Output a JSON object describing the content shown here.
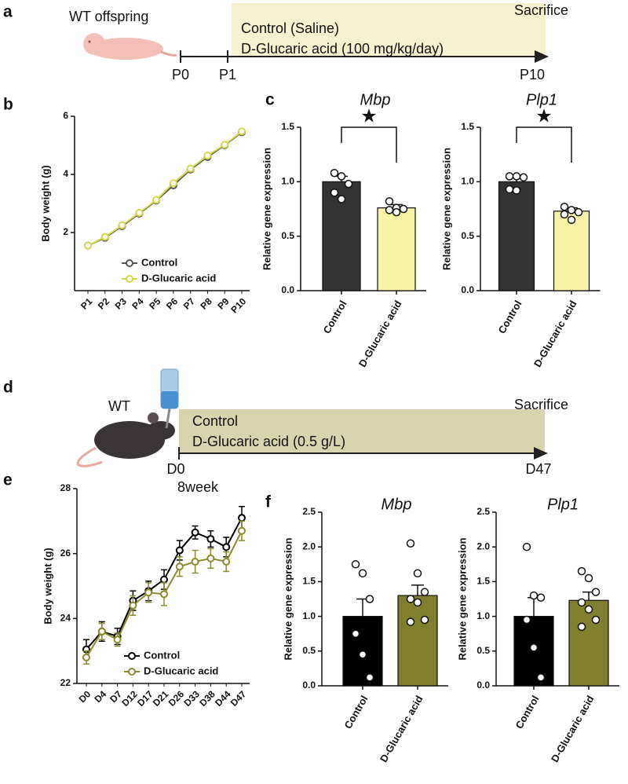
{
  "panel_labels": [
    "a",
    "b",
    "c",
    "d",
    "e",
    "f"
  ],
  "timelines": [
    {
      "label_left": "WT offspring",
      "treatments": [
        "Control (Saline)",
        "D-Glucaric acid (100 mg/kg/day)"
      ],
      "end_label": "Sacrifice",
      "timepoints": [
        "P0",
        "P1",
        "P10"
      ]
    },
    {
      "label_left": "WT",
      "treatments": [
        "Control",
        "D-Glucaric acid (0.5 g/L)"
      ],
      "end_label": "Sacrifice",
      "timepoints": [
        "D0",
        "D47"
      ],
      "note": "8week"
    }
  ],
  "chart_data": [
    {
      "type": "line",
      "ylabel": "Body weight (g)",
      "categories": [
        "P1",
        "P2",
        "P3",
        "P4",
        "P5",
        "P6",
        "P7",
        "P8",
        "P9",
        "P10"
      ],
      "ylim": [
        0,
        6
      ],
      "yticks": [
        2,
        4,
        6
      ],
      "legend": "lower right",
      "series": [
        {
          "name": "Control",
          "color": "#555555",
          "values": [
            1.55,
            1.82,
            2.22,
            2.65,
            3.1,
            3.62,
            4.17,
            4.6,
            5.0,
            5.45
          ]
        },
        {
          "name": "D-Glucaric acid",
          "color": "#d5d84c",
          "values": [
            1.55,
            1.85,
            2.25,
            2.68,
            3.12,
            3.7,
            4.2,
            4.65,
            5.02,
            5.48
          ]
        }
      ]
    },
    {
      "type": "bar",
      "title": "Mbp",
      "ylabel": "Relative gene expression",
      "categories": [
        "Control",
        "D-Glucaric acid"
      ],
      "values": [
        1.0,
        0.76
      ],
      "errors": [
        0.05,
        0.03
      ],
      "colors": [
        "#333333",
        "#fbf3a8"
      ],
      "points": [
        [
          1.08,
          1.05,
          0.98,
          0.9,
          0.84
        ],
        [
          0.82,
          0.76,
          0.75,
          0.74,
          0.72
        ]
      ],
      "significance": "★",
      "ylim": [
        0,
        1.5
      ],
      "yticks": [
        {
          "value": 0,
          "label": "0.0"
        },
        {
          "value": 0.5,
          "label": "0.5"
        },
        {
          "value": 1,
          "label": "1.0"
        },
        {
          "value": 1.5,
          "label": "1.5"
        }
      ]
    },
    {
      "type": "bar",
      "title": "Plp1",
      "ylabel": "Relative gene expression",
      "categories": [
        "Control",
        "D-Glucaric acid"
      ],
      "values": [
        1.0,
        0.73
      ],
      "errors": [
        0.05,
        0.03
      ],
      "colors": [
        "#333333",
        "#fbf3a8"
      ],
      "points": [
        [
          1.05,
          1.05,
          1.04,
          0.93,
          0.92
        ],
        [
          0.77,
          0.74,
          0.72,
          0.7,
          0.65
        ]
      ],
      "significance": "★",
      "ylim": [
        0,
        1.5
      ],
      "yticks": [
        {
          "value": 0,
          "label": "0.0"
        },
        {
          "value": 0.5,
          "label": "0.5"
        },
        {
          "value": 1,
          "label": "1.0"
        },
        {
          "value": 1.5,
          "label": "1.5"
        }
      ]
    },
    {
      "type": "line",
      "ylabel": "Body weight (g)",
      "categories": [
        "D0",
        "D4",
        "D7",
        "D12",
        "D17",
        "D21",
        "D26",
        "D33",
        "D38",
        "D44",
        "D47"
      ],
      "ylim": [
        22,
        28
      ],
      "yticks": [
        22,
        24,
        26,
        28
      ],
      "legend": "lower right",
      "series": [
        {
          "name": "Control",
          "color": "#000000",
          "values": [
            23.05,
            23.6,
            23.45,
            24.55,
            24.85,
            25.2,
            26.1,
            26.65,
            26.45,
            26.2,
            27.1
          ],
          "errors": [
            0.3,
            0.3,
            0.25,
            0.3,
            0.3,
            0.3,
            0.3,
            0.2,
            0.25,
            0.3,
            0.35
          ]
        },
        {
          "name": "D-Glucaric acid",
          "color": "#8b8b2e",
          "values": [
            22.8,
            23.6,
            23.35,
            24.4,
            24.8,
            24.75,
            25.6,
            25.75,
            25.85,
            25.75,
            26.7
          ],
          "errors": [
            0.2,
            0.25,
            0.2,
            0.3,
            0.3,
            0.35,
            0.3,
            0.35,
            0.3,
            0.3,
            0.3
          ]
        }
      ]
    },
    {
      "type": "bar",
      "title": "Mbp",
      "ylabel": "Relative gene expression",
      "categories": [
        "Control",
        "D-Glucaric acid"
      ],
      "values": [
        1.0,
        1.3
      ],
      "errors": [
        0.25,
        0.15
      ],
      "colors": [
        "#000000",
        "#7f7f2e"
      ],
      "points": [
        [
          1.75,
          1.62,
          1.25,
          0.75,
          0.45,
          0.12
        ],
        [
          2.05,
          1.62,
          1.35,
          1.25,
          1.2,
          0.95,
          0.92
        ]
      ],
      "ylim": [
        0,
        2.5
      ],
      "yticks": [
        {
          "value": 0,
          "label": "0.0"
        },
        {
          "value": 0.5,
          "label": "0.5"
        },
        {
          "value": 1,
          "label": "1.0"
        },
        {
          "value": 1.5,
          "label": "1.5"
        },
        {
          "value": 2,
          "label": "2.0"
        },
        {
          "value": 2.5,
          "label": "2.5"
        }
      ]
    },
    {
      "type": "bar",
      "title": "Plp1",
      "ylabel": "Relative gene expression",
      "categories": [
        "Control",
        "D-Glucaric acid"
      ],
      "values": [
        1.0,
        1.23
      ],
      "errors": [
        0.27,
        0.12
      ],
      "colors": [
        "#000000",
        "#7f7f2e"
      ],
      "points": [
        [
          2.0,
          1.3,
          1.27,
          0.95,
          0.55,
          0.12
        ],
        [
          1.65,
          1.55,
          1.35,
          1.2,
          1.1,
          0.95,
          0.85
        ]
      ],
      "ylim": [
        0,
        2.5
      ],
      "yticks": [
        {
          "value": 0,
          "label": "0.0"
        },
        {
          "value": 0.5,
          "label": "0.5"
        },
        {
          "value": 1,
          "label": "1.0"
        },
        {
          "value": 1.5,
          "label": "1.5"
        },
        {
          "value": 2,
          "label": "2.0"
        },
        {
          "value": 2.5,
          "label": "2.5"
        }
      ]
    }
  ]
}
